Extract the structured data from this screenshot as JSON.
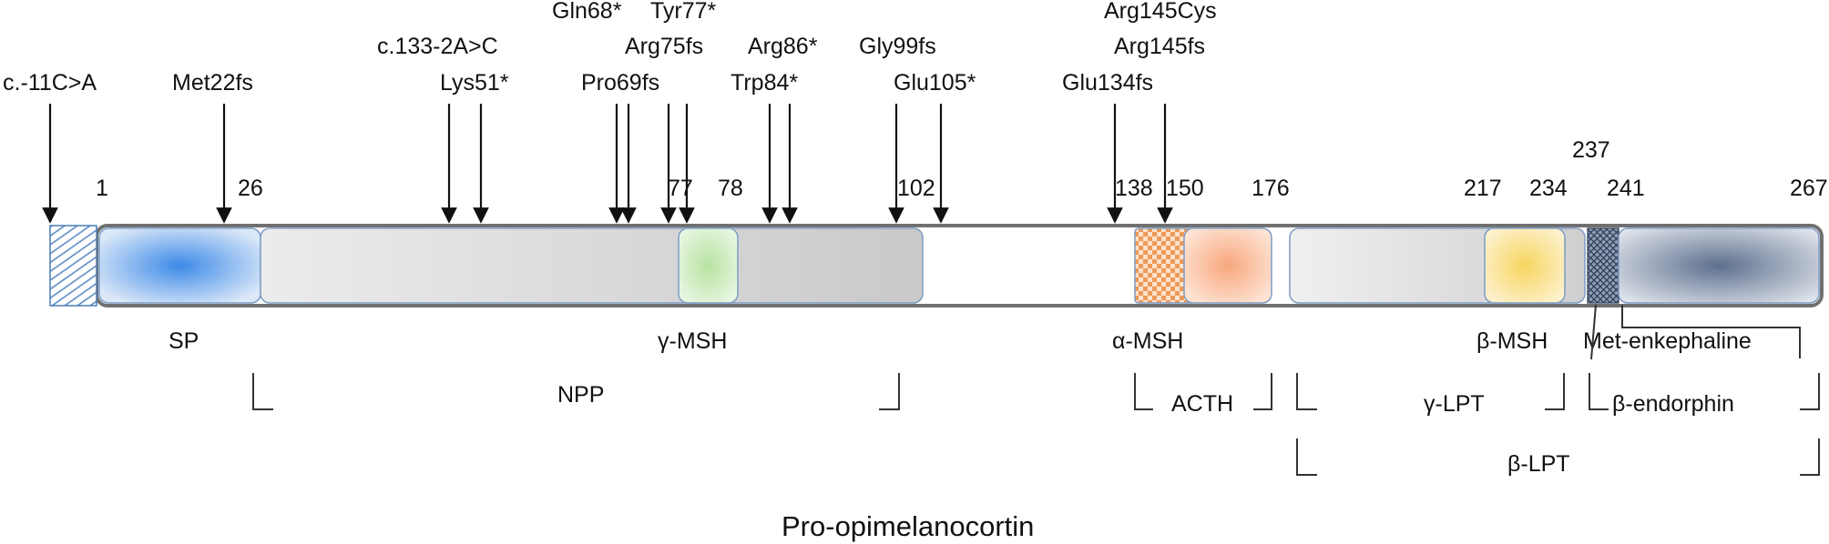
{
  "title": "Pro-opimelanocortin",
  "mutations": {
    "c11CA": "c.-11C>A",
    "met22fs": "Met22fs",
    "c133": "c.133-2A>C",
    "lys51": "Lys51*",
    "gln68": "Gln68*",
    "pro69fs": "Pro69fs",
    "tyr77": "Tyr77*",
    "arg75fs": "Arg75fs",
    "arg86": "Arg86*",
    "trp84": "Trp84*",
    "gly99fs": "Gly99fs",
    "glu105": "Glu105*",
    "arg145cys": "Arg145Cys",
    "arg145fs": "Arg145fs",
    "glu134fs": "Glu134fs"
  },
  "positions": {
    "p1": "1",
    "p26": "26",
    "p77": "77",
    "p78": "78",
    "p102": "102",
    "p138": "138",
    "p150": "150",
    "p176": "176",
    "p217": "217",
    "p234": "234",
    "p237": "237",
    "p241": "241",
    "p267": "267"
  },
  "domains": {
    "sp": "SP",
    "gamma_msh": "γ-MSH",
    "alpha_msh": "α-MSH",
    "beta_msh": "β-MSH",
    "met_enk": "Met-enkephaline"
  },
  "fragments": {
    "npp": "NPP",
    "acth": "ACTH",
    "gamma_lpt": "γ-LPT",
    "beta_endorphin": "β-endorphin",
    "beta_lpt": "β-LPT"
  },
  "colors": {
    "sp": "#4a90e2",
    "gamma_msh": "#b9e0a5",
    "alpha_msh_check": "#f4a460",
    "acth": "#f9b48a",
    "beta_msh": "#f8d66b",
    "beta_endorphin": "#6f7f9a",
    "backbone": "#d0d0d0"
  }
}
